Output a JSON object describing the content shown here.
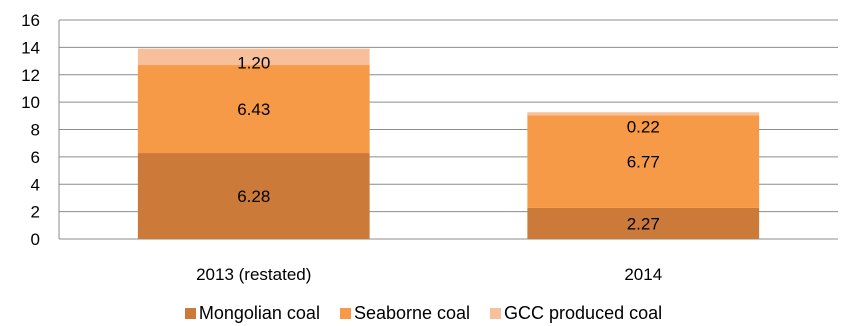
{
  "chart_data": {
    "type": "bar",
    "stacked": true,
    "categories": [
      "2013 (restated)",
      "2014"
    ],
    "series": [
      {
        "name": "Mongolian coal",
        "values": [
          6.28,
          2.27
        ],
        "labels": [
          "6.28",
          "2.27"
        ],
        "color": "#cc7a3a"
      },
      {
        "name": "Seaborne coal",
        "values": [
          6.43,
          6.77
        ],
        "labels": [
          "6.43",
          "6.77"
        ],
        "color": "#f79a48"
      },
      {
        "name": "GCC produced coal",
        "values": [
          1.2,
          0.22
        ],
        "labels": [
          "1.20",
          "0.22"
        ],
        "color": "#f8c09a"
      }
    ],
    "ylim": [
      0,
      16
    ],
    "yticks": [
      "0",
      "2",
      "4",
      "6",
      "8",
      "10",
      "12",
      "14",
      "16"
    ],
    "grid": true,
    "legend": "bottom"
  }
}
